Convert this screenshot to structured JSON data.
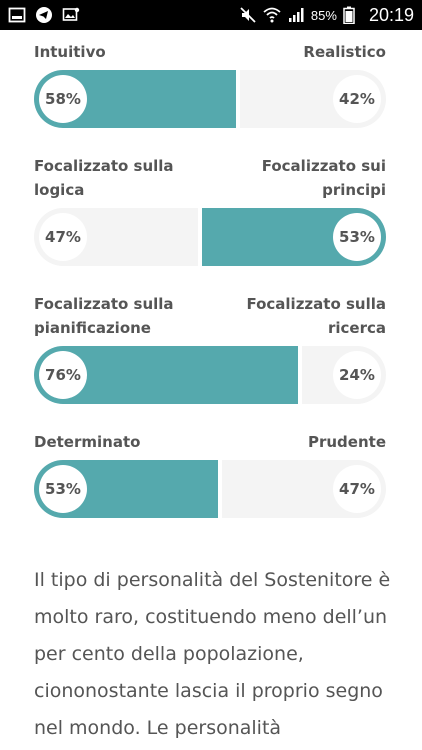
{
  "status_bar": {
    "battery": "85%",
    "time": "20:19"
  },
  "traits": [
    {
      "left_label": "Intuitivo",
      "right_label": "Realistico",
      "left_value": "58%",
      "right_value": "42%",
      "left_fraction": 0.58,
      "dominant": "left"
    },
    {
      "left_label": "Focalizzato sulla logica",
      "right_label": "Focalizzato sui principi",
      "left_value": "47%",
      "right_value": "53%",
      "left_fraction": 0.47,
      "dominant": "right"
    },
    {
      "left_label": "Focalizzato sulla pianificazione",
      "right_label": "Focalizzato sulla ricerca",
      "left_value": "76%",
      "right_value": "24%",
      "left_fraction": 0.76,
      "dominant": "left"
    },
    {
      "left_label": "Determinato",
      "right_label": "Prudente",
      "left_value": "53%",
      "right_value": "47%",
      "left_fraction": 0.53,
      "dominant": "left"
    }
  ],
  "colors": {
    "accent": "#55a9ad",
    "track": "#f4f4f4",
    "text": "#555555"
  },
  "paragraph": "Il tipo di personalità del Sostenitore è molto raro, costituendo meno dell’un per cento della popolazione, ciononostante lascia il proprio segno nel mondo. Le personalità"
}
